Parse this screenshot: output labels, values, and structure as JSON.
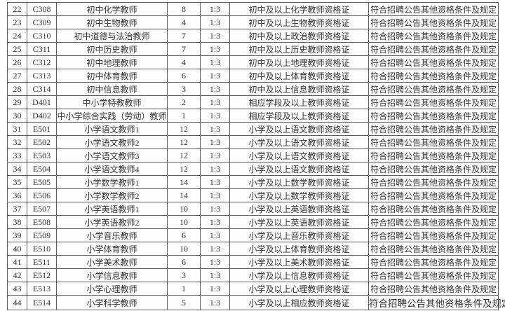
{
  "colors": {
    "background": "#fdfdfd",
    "border": "#5c5c5c",
    "text": "#333333"
  },
  "table": {
    "fields": [
      "index",
      "code",
      "name",
      "count",
      "ratio",
      "qualification",
      "other"
    ],
    "rows": [
      [
        "22",
        "C308",
        "初中化学教师",
        "8",
        "1:3",
        "初中及以上化学教师资格证",
        "符合招聘公告其他资格条件及规定"
      ],
      [
        "23",
        "C309",
        "初中生物教师",
        "4",
        "1:3",
        "初中及以上生物教师资格证",
        "符合招聘公告其他资格条件及规定"
      ],
      [
        "24",
        "C310",
        "初中道德与法治教师",
        "7",
        "1:3",
        "初中及以上政治教师资格证",
        "符合招聘公告其他资格条件及规定"
      ],
      [
        "25",
        "C311",
        "初中历史教师",
        "7",
        "1:3",
        "初中及以上历史教师资格证",
        "符合招聘公告其他资格条件及规定"
      ],
      [
        "26",
        "C312",
        "初中地理教师",
        "4",
        "1:3",
        "初中及以上地理教师资格证",
        "符合招聘公告其他资格条件及规定"
      ],
      [
        "27",
        "C313",
        "初中体育教师",
        "6",
        "1:3",
        "初中及以上体育教师资格证",
        "符合招聘公告其他资格条件及规定"
      ],
      [
        "28",
        "C314",
        "初中信息教师",
        "3",
        "1:3",
        "初中及以上信息教师资格证",
        "符合招聘公告其他资格条件及规定"
      ],
      [
        "29",
        "D401",
        "中小学特教教师",
        "2",
        "1:3",
        "相应学段及以上教师资格证",
        "符合招聘公告其他资格条件及规定"
      ],
      [
        "30",
        "D402",
        "中小学综合实践（劳动）教师",
        "1",
        "1:3",
        "相应学段及以上教师资格证",
        "符合招聘公告其他资格条件及规定"
      ],
      [
        "31",
        "E501",
        "小学语文教师1",
        "12",
        "1:3",
        "小学及以上语文教师资格证",
        "符合招聘公告其他资格条件及规定"
      ],
      [
        "32",
        "E502",
        "小学语文教师2",
        "12",
        "1:3",
        "小学及以上语文教师资格证",
        "符合招聘公告其他资格条件及规定"
      ],
      [
        "33",
        "E503",
        "小学语文教师3",
        "12",
        "1:3",
        "小学及以上语文教师资格证",
        "符合招聘公告其他资格条件及规定"
      ],
      [
        "34",
        "E504",
        "小学语文教师4",
        "12",
        "1:3",
        "小学及以上语文教师资格证",
        "符合招聘公告其他资格条件及规定"
      ],
      [
        "35",
        "E505",
        "小学数学教师1",
        "14",
        "1:3",
        "小学及以上数学教师资格证",
        "符合招聘公告其他资格条件及规定"
      ],
      [
        "36",
        "E506",
        "小学数学教师2",
        "14",
        "1:3",
        "小学及以上数学教师资格证",
        "符合招聘公告其他资格条件及规定"
      ],
      [
        "37",
        "E507",
        "小学英语教师1",
        "10",
        "1:3",
        "小学及以上英语教师资格证",
        "符合招聘公告其他资格条件及规定"
      ],
      [
        "38",
        "E508",
        "小学英语教师2",
        "10",
        "1:3",
        "小学及以上英语教师资格证",
        "符合招聘公告其他资格条件及规定"
      ],
      [
        "39",
        "E509",
        "小学音乐教师",
        "6",
        "1:3",
        "小学及以上音乐教师资格证",
        "符合招聘公告其他资格条件及规定"
      ],
      [
        "40",
        "E510",
        "小学体育教师",
        "10",
        "1:3",
        "小学及以上体育教师资格证",
        "符合招聘公告其他资格条件及规定"
      ],
      [
        "41",
        "E511",
        "小学美术教师",
        "6",
        "1:3",
        "小学及以上美术教师资格证",
        "符合招聘公告其他资格条件及规定"
      ],
      [
        "42",
        "E512",
        "小学信息教师",
        "3",
        "1:3",
        "小学及以上信息教师资格证",
        "符合招聘公告其他资格条件及规定"
      ],
      [
        "43",
        "E513",
        "小学心理教师",
        "1",
        "1:3",
        "小学及以上心理教师资格证",
        "符合招聘公告其他资格条件及规定"
      ],
      [
        "44",
        "E514",
        "小学科学教师",
        "5",
        "1:3",
        "小学及以上相应教师资格证",
        "符合招聘公告其他资格条件及规定"
      ]
    ]
  }
}
